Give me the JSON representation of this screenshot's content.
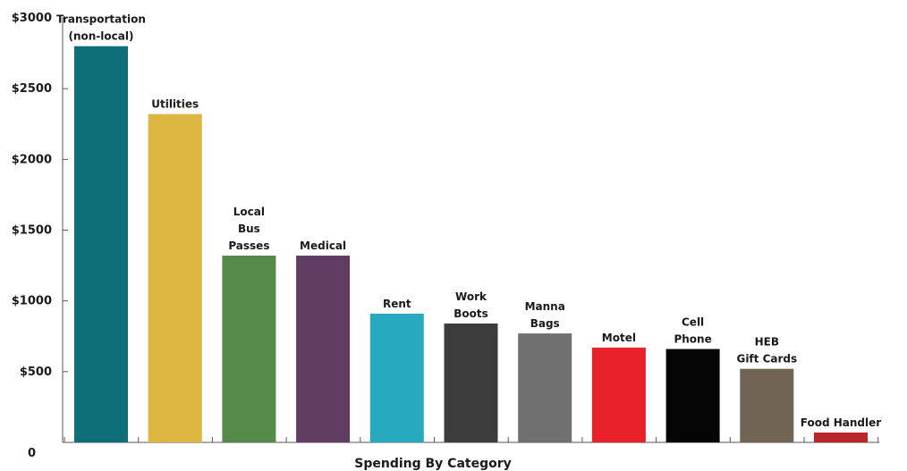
{
  "chart_data": {
    "type": "bar",
    "xlabel": "Spending By Category",
    "ylabel": "",
    "ylim": [
      0,
      3000
    ],
    "yticks": [
      {
        "value": 0,
        "label": "0"
      },
      {
        "value": 500,
        "label": "$500"
      },
      {
        "value": 1000,
        "label": "$1000"
      },
      {
        "value": 1500,
        "label": "$1500"
      },
      {
        "value": 2000,
        "label": "$2000"
      },
      {
        "value": 2500,
        "label": "$2500"
      },
      {
        "value": 3000,
        "label": "$3000"
      }
    ],
    "categories": [
      [
        "Transportation",
        "(non-local)"
      ],
      [
        "Utilities"
      ],
      [
        "Local",
        "Bus",
        "Passes"
      ],
      [
        "Medical"
      ],
      [
        "Rent"
      ],
      [
        "Work",
        "Boots"
      ],
      [
        "Manna",
        "Bags"
      ],
      [
        "Motel"
      ],
      [
        "Cell",
        "Phone"
      ],
      [
        "HEB",
        "Gift Cards"
      ],
      [
        "Food Handler"
      ]
    ],
    "values": [
      2800,
      2320,
      1320,
      1320,
      910,
      840,
      770,
      670,
      660,
      520,
      70
    ],
    "colors": [
      "#0f6f78",
      "#dcb640",
      "#558a48",
      "#623d63",
      "#27aabd",
      "#3c3c3c",
      "#707070",
      "#e8212b",
      "#050505",
      "#706454",
      "#b8262a"
    ],
    "grid": false,
    "legend": "none"
  }
}
